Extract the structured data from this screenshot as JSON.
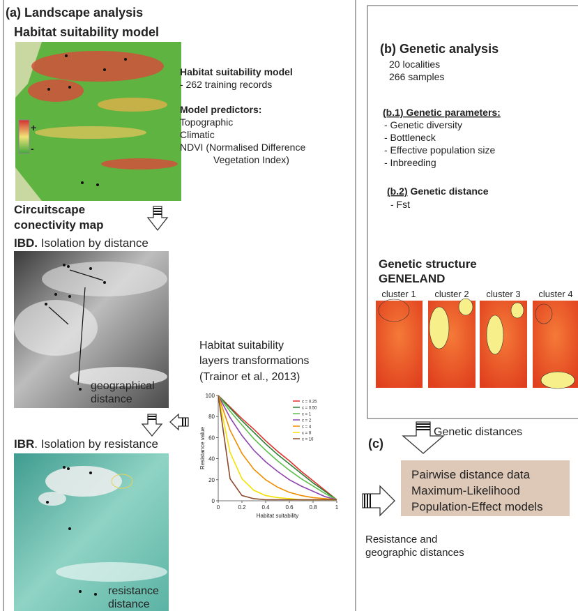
{
  "panel_a": {
    "label": "(a)",
    "title": "Landscape analysis",
    "subtitle": "Habitat suitability model",
    "hsm_heading": "Habitat suitability model",
    "hsm_records": "- 262 training records",
    "predictors_heading": "Model predictors:",
    "predictors": [
      "Topographic",
      "Climatic",
      "NDVI (Normalised Difference",
      "Vegetation Index)"
    ],
    "legend_plus": "+",
    "legend_minus": "-",
    "circuitscape": [
      "Circuitscape",
      "conectivity map"
    ],
    "ibd": {
      "abbr": "IBD.",
      "text": "Isolation by distance"
    },
    "geo_label": [
      "geographical",
      "distance"
    ],
    "transform_title": [
      "Habitat suitability",
      "layers transformations",
      "(Trainor et al., 2013)"
    ],
    "ibr": {
      "abbr": "IBR",
      "text": ". Isolation by resistance"
    },
    "res_label": [
      "resistance",
      "distance"
    ]
  },
  "chart_data": {
    "type": "line",
    "xlabel": "Habitat suitability",
    "ylabel": "Resistance value",
    "x": [
      0,
      0.1,
      0.2,
      0.3,
      0.4,
      0.5,
      0.6,
      0.7,
      0.8,
      0.9,
      1
    ],
    "series": [
      {
        "name": "c = 0.25",
        "color": "#e03030",
        "values": [
          100,
          89,
          78,
          68,
          57,
          47,
          38,
          28,
          19,
          10,
          1
        ]
      },
      {
        "name": "c = 0.50",
        "color": "#2e7d32",
        "values": [
          100,
          88,
          76,
          65,
          54,
          44,
          35,
          26,
          17,
          9,
          1
        ]
      },
      {
        "name": "c = 1",
        "color": "#5cc04a",
        "values": [
          100,
          85,
          72,
          59,
          48,
          38,
          29,
          21,
          14,
          7,
          1
        ]
      },
      {
        "name": "c = 2",
        "color": "#8e44ad",
        "values": [
          100,
          79,
          62,
          48,
          37,
          28,
          20,
          14,
          9,
          4,
          1
        ]
      },
      {
        "name": "c = 4",
        "color": "#f08c00",
        "values": [
          100,
          67,
          45,
          30,
          20,
          13,
          8,
          5,
          3,
          2,
          1
        ]
      },
      {
        "name": "c = 8",
        "color": "#f5e000",
        "values": [
          100,
          46,
          21,
          10,
          5,
          3,
          2,
          1,
          1,
          1,
          1
        ]
      },
      {
        "name": "c = 16",
        "color": "#8b4a2b",
        "values": [
          100,
          21,
          5,
          2,
          1,
          1,
          1,
          1,
          1,
          1,
          1
        ]
      }
    ],
    "xlim": [
      0,
      1
    ],
    "ylim": [
      0,
      100
    ],
    "xticks": [
      0,
      0.2,
      0.4,
      0.6,
      0.8,
      1
    ],
    "yticks": [
      0,
      20,
      40,
      60,
      80,
      100
    ]
  },
  "panel_b": {
    "label": "(b)",
    "title": "Genetic analysis",
    "info": [
      "20 localities",
      "266 samples"
    ],
    "b1_label": "(b.1)",
    "b1_title": "Genetic parameters:",
    "b1_items": [
      "- Genetic diversity",
      "- Bottleneck",
      "- Effective population size",
      "- Inbreeding"
    ],
    "b2_label": "(b.2)",
    "b2_title": "Genetic distance",
    "b2_items": [
      "- Fst"
    ],
    "structure_title": [
      "Genetic structure",
      "GENELAND"
    ],
    "clusters": [
      "cluster 1",
      "cluster 2",
      "cluster 3",
      "cluster 4"
    ]
  },
  "panel_c": {
    "label": "(c)",
    "genetic_distances": "Genetic distances",
    "box": [
      "Pairwise distance data",
      "Maximum-Likelihood",
      "Population-Effect models"
    ],
    "resistance": [
      "Resistance and",
      "geographic distances"
    ]
  }
}
